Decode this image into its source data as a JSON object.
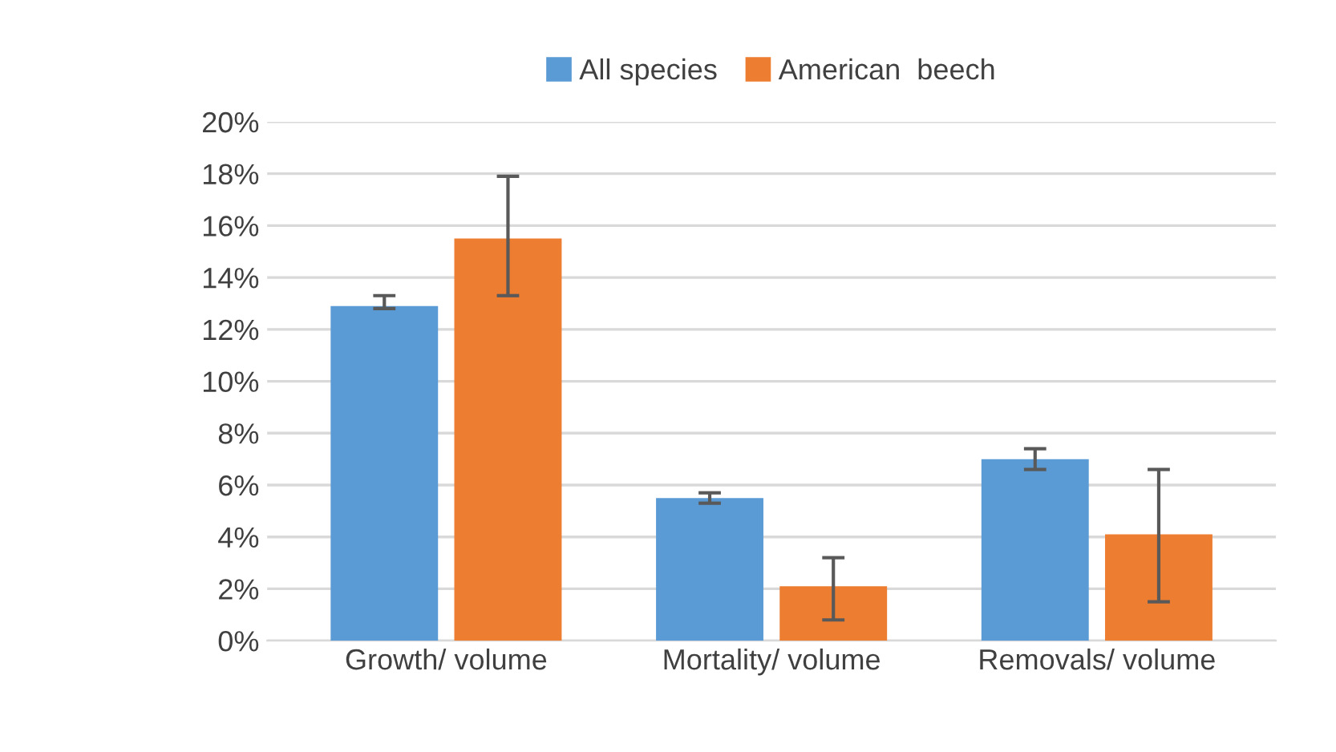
{
  "chart_data": {
    "type": "bar",
    "categories": [
      "Growth/ volume",
      "Mortality/ volume",
      "Removals/ volume"
    ],
    "series": [
      {
        "name": "All species",
        "color": "#5b9bd5",
        "values": [
          12.9,
          5.5,
          7.0
        ],
        "errors": [
          [
            12.8,
            13.3
          ],
          [
            5.3,
            5.7
          ],
          [
            6.6,
            7.4
          ]
        ]
      },
      {
        "name": "American  beech",
        "color": "#ed7d31",
        "values": [
          15.5,
          2.1,
          4.1
        ],
        "errors": [
          [
            13.3,
            17.9
          ],
          [
            0.8,
            3.2
          ],
          [
            1.5,
            6.6
          ]
        ]
      }
    ],
    "ylim": [
      0,
      20
    ],
    "yticks": [
      {
        "value": 0,
        "label": "0%"
      },
      {
        "value": 2,
        "label": "2%"
      },
      {
        "value": 4,
        "label": "4%"
      },
      {
        "value": 6,
        "label": "6%"
      },
      {
        "value": 8,
        "label": "8%"
      },
      {
        "value": 10,
        "label": "10%"
      },
      {
        "value": 12,
        "label": "12%"
      },
      {
        "value": 14,
        "label": "14%"
      },
      {
        "value": 16,
        "label": "16%"
      },
      {
        "value": 18,
        "label": "18%"
      },
      {
        "value": 20,
        "label": "20%"
      }
    ],
    "grid": "y",
    "legend": "top"
  }
}
